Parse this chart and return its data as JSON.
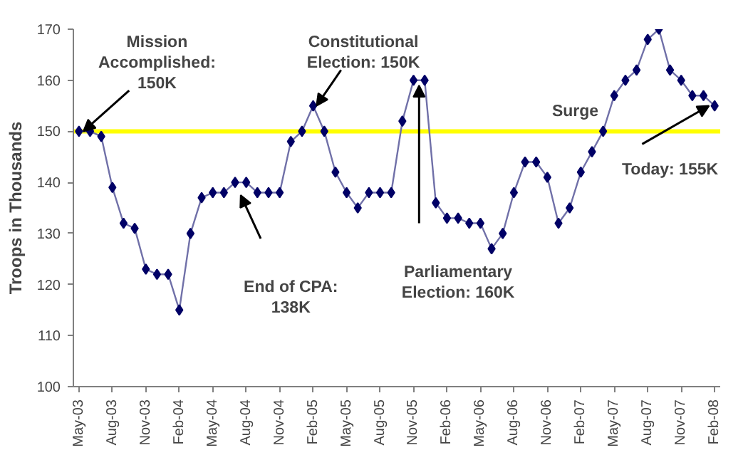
{
  "chart_data": {
    "type": "line",
    "ylabel": "Troops in Thousands",
    "categories": [
      "May-03",
      null,
      null,
      "Aug-03",
      null,
      null,
      "Nov-03",
      null,
      null,
      "Feb-04",
      null,
      null,
      "May-04",
      null,
      null,
      "Aug-04",
      null,
      null,
      "Nov-04",
      null,
      null,
      "Feb-05",
      null,
      null,
      "May-05",
      null,
      null,
      "Aug-05",
      null,
      null,
      "Nov-05",
      null,
      null,
      "Feb-06",
      null,
      null,
      "May-06",
      null,
      null,
      "Aug-06",
      null,
      null,
      "Nov-06",
      null,
      null,
      "Feb-07",
      null,
      null,
      "May-07",
      null,
      null,
      "Aug-07",
      null,
      null,
      "Nov-07",
      null,
      null,
      "Feb-08"
    ],
    "series": [
      {
        "color": "#000066",
        "values": [
          150,
          150,
          149,
          139,
          132,
          131,
          123,
          122,
          122,
          115,
          130,
          137,
          138,
          138,
          140,
          140,
          138,
          138,
          138,
          148,
          150,
          155,
          150,
          142,
          138,
          135,
          138,
          138,
          138,
          152,
          160,
          160,
          136,
          133,
          133,
          132,
          132,
          127,
          130,
          138,
          144,
          144,
          141,
          132,
          135,
          142,
          146,
          150,
          157,
          160,
          162,
          168,
          170,
          162,
          160,
          157,
          157,
          155
        ]
      }
    ],
    "ylim": [
      100,
      170
    ],
    "yticks": [
      100,
      110,
      120,
      130,
      140,
      150,
      160,
      170
    ],
    "ref_lines": [
      {
        "axis": "y",
        "value": 150,
        "color": "#ffff00"
      }
    ],
    "marker": "diamond",
    "grid": false,
    "annotations": [
      {
        "text": "Mission Accomplished: 150K",
        "x": "May-03",
        "y": 150
      },
      "End of CPA: 138K",
      {
        "text": "Constitutional Election: 150K",
        "x": "Feb-05",
        "y": 155
      },
      "Parliamentary Election: 160K",
      "Surge",
      {
        "text": "Today: 155K",
        "x": "Feb-08",
        "y": 155
      }
    ]
  }
}
